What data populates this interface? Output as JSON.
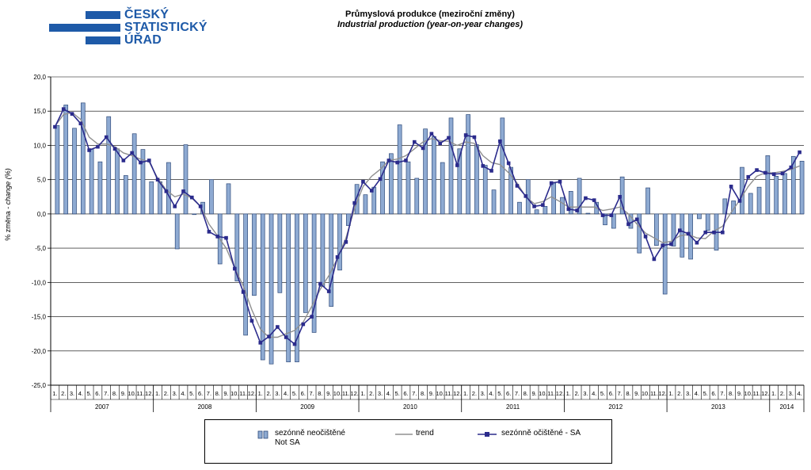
{
  "logo": {
    "line1": "ČESKÝ",
    "line2": "STATISTICKÝ",
    "line3": "ÚŘAD",
    "color": "#1e5aa8"
  },
  "title_cz": "Průmyslová produkce (meziroční změny)",
  "title_en": "Industrial  production (year-on-year  changes)",
  "y_axis_label_cz": "% změna - ",
  "y_axis_label_en": "change (%)",
  "legend": {
    "nsa_line1": "sezónně neočištěné",
    "nsa_line2": "Not SA",
    "trend": "trend",
    "sa": "sezónně očištěné - SA"
  },
  "colors": {
    "bar_fill": "#8eaad2",
    "bar_stroke": "#2e4a7a",
    "sa_line": "#2b2b8c",
    "trend_line": "#909090"
  },
  "chart_data": {
    "type": "bar+line",
    "ylim": [
      -25,
      20
    ],
    "yticks": [
      -25,
      -20,
      -15,
      -10,
      -5,
      0,
      5,
      10,
      15,
      20
    ],
    "ytick_labels": [
      "-25,0",
      "-20,0",
      "-15,0",
      "-10,0",
      "-5,0",
      "0,0",
      "5,0",
      "10,0",
      "15,0",
      "20,0"
    ],
    "grid": true,
    "legend_position": "bottom",
    "year_labels": [
      "2007",
      "2008",
      "2009",
      "2010",
      "2011",
      "2012",
      "2013",
      "2014"
    ],
    "year_month_counts": [
      12,
      12,
      12,
      12,
      12,
      12,
      12,
      4
    ],
    "month_labels": [
      "1.",
      "2.",
      "3.",
      "4.",
      "5.",
      "6.",
      "7.",
      "8.",
      "9.",
      "10.",
      "11.",
      "12."
    ],
    "series": [
      {
        "name": "sezónně neočištěné Not SA",
        "kind": "bar",
        "values": [
          12.9,
          15.9,
          12.5,
          16.2,
          9.5,
          7.6,
          14.2,
          9.5,
          5.6,
          11.7,
          9.4,
          4.7,
          4.7,
          7.5,
          -5.1,
          10.1,
          -0.1,
          1.7,
          5.0,
          -7.3,
          4.4,
          -9.8,
          -17.7,
          -11.9,
          -21.3,
          -21.9,
          -11.5,
          -21.6,
          -21.6,
          -14.4,
          -17.3,
          -10.6,
          -13.5,
          -8.2,
          -1.7,
          4.3,
          2.8,
          3.9,
          7.6,
          8.8,
          13.0,
          7.6,
          5.2,
          12.4,
          11.3,
          7.5,
          14.0,
          9.5,
          14.5,
          10.1,
          7.1,
          3.5,
          14.0,
          6.8,
          1.7,
          5.0,
          0.6,
          1.1,
          4.5,
          2.4,
          3.3,
          5.2,
          0.1,
          1.7,
          -1.6,
          -2.1,
          5.4,
          -2.1,
          -5.7,
          3.8,
          -4.6,
          -11.7,
          -4.7,
          -6.3,
          -6.6,
          -0.7,
          -2.4,
          -5.3,
          2.2,
          1.9,
          6.8,
          3.0,
          3.9,
          8.5,
          5.5,
          5.9,
          8.4,
          7.7
        ]
      },
      {
        "name": "trend",
        "kind": "line",
        "values": [
          12.8,
          14.5,
          14.8,
          13.8,
          11.2,
          10.2,
          10.2,
          9.8,
          8.9,
          8.5,
          8.0,
          7.6,
          5.2,
          3.5,
          2.5,
          2.9,
          2.3,
          1.1,
          -1.5,
          -3.2,
          -5.0,
          -7.9,
          -10.5,
          -14.0,
          -16.8,
          -18.0,
          -18.0,
          -17.5,
          -17.0,
          -15.8,
          -13.5,
          -11.0,
          -9.0,
          -6.5,
          -3.5,
          0.8,
          4.0,
          5.5,
          6.5,
          7.8,
          8.0,
          8.5,
          9.5,
          10.5,
          11.0,
          10.7,
          10.6,
          10.0,
          10.5,
          10.3,
          8.5,
          7.5,
          7.2,
          6.0,
          4.5,
          2.5,
          1.5,
          1.8,
          2.5,
          1.8,
          1.0,
          1.0,
          1.0,
          1.0,
          0.5,
          0.7,
          1.0,
          0.0,
          -1.5,
          -2.8,
          -3.5,
          -4.2,
          -4.0,
          -3.2,
          -3.0,
          -3.5,
          -3.6,
          -2.5,
          -1.8,
          0.2,
          2.0,
          4.0,
          5.5,
          6.0,
          6.0,
          6.2,
          6.5,
          7.0
        ]
      },
      {
        "name": "sezónně očištěné - SA",
        "kind": "line-marker",
        "values": [
          12.7,
          15.3,
          14.6,
          13.2,
          9.3,
          9.8,
          11.2,
          9.5,
          7.8,
          8.9,
          7.5,
          7.8,
          5.0,
          3.3,
          1.1,
          3.3,
          2.4,
          1.1,
          -2.6,
          -3.3,
          -3.5,
          -8.0,
          -11.4,
          -15.6,
          -18.8,
          -17.9,
          -16.5,
          -18.0,
          -19.0,
          -16.1,
          -15.0,
          -10.2,
          -11.3,
          -6.3,
          -4.1,
          1.6,
          4.7,
          3.4,
          5.1,
          7.8,
          7.5,
          7.8,
          10.5,
          9.6,
          11.7,
          10.3,
          11.1,
          7.1,
          11.5,
          11.2,
          7.0,
          6.3,
          10.6,
          7.4,
          4.1,
          2.6,
          1.1,
          1.3,
          4.5,
          4.7,
          0.7,
          0.5,
          2.3,
          2.0,
          -0.2,
          -0.2,
          2.5,
          -1.5,
          -0.8,
          -3.3,
          -6.6,
          -4.6,
          -4.4,
          -2.4,
          -2.9,
          -4.2,
          -2.7,
          -2.7,
          -2.7,
          4.0,
          1.9,
          5.4,
          6.4,
          6.0,
          5.8,
          5.9,
          6.8,
          9.0
        ]
      }
    ]
  }
}
